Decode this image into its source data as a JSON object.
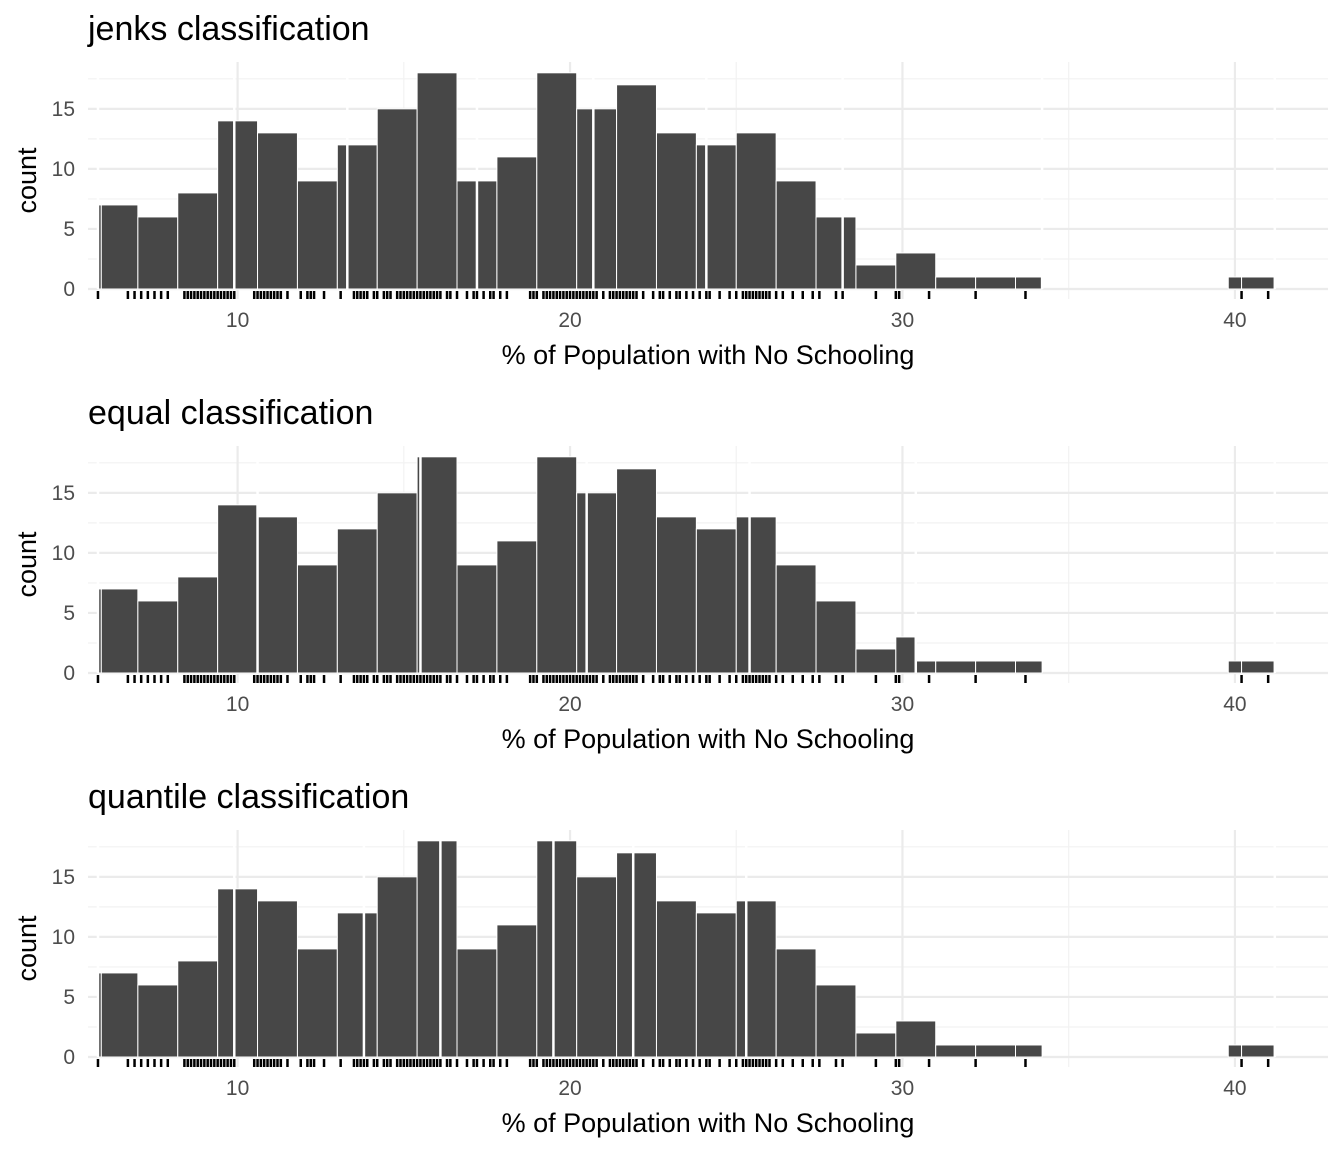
{
  "chart_data": [
    {
      "type": "bar",
      "title": "jenks classification",
      "xlabel": "% of Population with No Schooling",
      "ylabel": "count",
      "xlim": [
        5.5,
        42.8
      ],
      "ylim": [
        0,
        18.9
      ],
      "x_ticks": [
        10,
        20,
        30,
        40
      ],
      "y_ticks": [
        0,
        5,
        10,
        15
      ],
      "grid": true,
      "legend": "none",
      "breaks": [
        5.8,
        9.9,
        13.3,
        17.2,
        20.7,
        24.1,
        28.2,
        34.2,
        41.2
      ],
      "bins": [
        {
          "x0": 5.8,
          "x1": 5.9,
          "count": 7
        },
        {
          "x0": 5.9,
          "x1": 7.0,
          "count": 7
        },
        {
          "x0": 7.0,
          "x1": 8.2,
          "count": 6
        },
        {
          "x0": 8.2,
          "x1": 9.4,
          "count": 8
        },
        {
          "x0": 9.4,
          "x1": 9.9,
          "count": 14
        },
        {
          "x0": 9.9,
          "x1": 10.6,
          "count": 14
        },
        {
          "x0": 10.6,
          "x1": 11.8,
          "count": 13
        },
        {
          "x0": 11.8,
          "x1": 13.0,
          "count": 9
        },
        {
          "x0": 13.0,
          "x1": 13.3,
          "count": 12
        },
        {
          "x0": 13.3,
          "x1": 14.2,
          "count": 12
        },
        {
          "x0": 14.2,
          "x1": 15.4,
          "count": 15
        },
        {
          "x0": 15.4,
          "x1": 16.6,
          "count": 18
        },
        {
          "x0": 16.6,
          "x1": 17.2,
          "count": 9
        },
        {
          "x0": 17.2,
          "x1": 17.8,
          "count": 9
        },
        {
          "x0": 17.8,
          "x1": 19.0,
          "count": 11
        },
        {
          "x0": 19.0,
          "x1": 20.2,
          "count": 18
        },
        {
          "x0": 20.2,
          "x1": 20.7,
          "count": 15
        },
        {
          "x0": 20.7,
          "x1": 21.4,
          "count": 15
        },
        {
          "x0": 21.4,
          "x1": 22.6,
          "count": 17
        },
        {
          "x0": 22.6,
          "x1": 23.8,
          "count": 13
        },
        {
          "x0": 23.8,
          "x1": 24.1,
          "count": 12
        },
        {
          "x0": 24.1,
          "x1": 25.0,
          "count": 12
        },
        {
          "x0": 25.0,
          "x1": 26.2,
          "count": 13
        },
        {
          "x0": 26.2,
          "x1": 27.4,
          "count": 9
        },
        {
          "x0": 27.4,
          "x1": 28.2,
          "count": 6
        },
        {
          "x0": 28.2,
          "x1": 28.6,
          "count": 6
        },
        {
          "x0": 28.6,
          "x1": 29.8,
          "count": 2
        },
        {
          "x0": 29.8,
          "x1": 31.0,
          "count": 3
        },
        {
          "x0": 31.0,
          "x1": 32.2,
          "count": 1
        },
        {
          "x0": 32.2,
          "x1": 33.4,
          "count": 1
        },
        {
          "x0": 33.4,
          "x1": 34.2,
          "count": 1
        },
        {
          "x0": 39.8,
          "x1": 40.2,
          "count": 1
        },
        {
          "x0": 40.2,
          "x1": 41.2,
          "count": 1
        }
      ]
    },
    {
      "type": "bar",
      "title": "equal classification",
      "xlabel": "% of Population with No Schooling",
      "ylabel": "count",
      "xlim": [
        5.5,
        42.8
      ],
      "ylim": [
        0,
        18.9
      ],
      "x_ticks": [
        10,
        20,
        30,
        40
      ],
      "y_ticks": [
        0,
        5,
        10,
        15
      ],
      "grid": true,
      "legend": "none",
      "breaks": [
        5.8,
        10.6,
        15.5,
        20.5,
        25.4,
        30.4,
        41.2
      ],
      "bins": [
        {
          "x0": 5.8,
          "x1": 5.9,
          "count": 7
        },
        {
          "x0": 5.9,
          "x1": 7.0,
          "count": 7
        },
        {
          "x0": 7.0,
          "x1": 8.2,
          "count": 6
        },
        {
          "x0": 8.2,
          "x1": 9.4,
          "count": 8
        },
        {
          "x0": 9.4,
          "x1": 10.6,
          "count": 14
        },
        {
          "x0": 10.6,
          "x1": 10.6,
          "count": 13
        },
        {
          "x0": 10.6,
          "x1": 11.8,
          "count": 13
        },
        {
          "x0": 11.8,
          "x1": 13.0,
          "count": 9
        },
        {
          "x0": 13.0,
          "x1": 14.2,
          "count": 12
        },
        {
          "x0": 14.2,
          "x1": 15.4,
          "count": 15
        },
        {
          "x0": 15.4,
          "x1": 15.5,
          "count": 18
        },
        {
          "x0": 15.5,
          "x1": 16.6,
          "count": 18
        },
        {
          "x0": 16.6,
          "x1": 17.8,
          "count": 9
        },
        {
          "x0": 17.8,
          "x1": 19.0,
          "count": 11
        },
        {
          "x0": 19.0,
          "x1": 20.2,
          "count": 18
        },
        {
          "x0": 20.2,
          "x1": 20.5,
          "count": 15
        },
        {
          "x0": 20.5,
          "x1": 21.4,
          "count": 15
        },
        {
          "x0": 21.4,
          "x1": 22.6,
          "count": 17
        },
        {
          "x0": 22.6,
          "x1": 23.8,
          "count": 13
        },
        {
          "x0": 23.8,
          "x1": 25.0,
          "count": 12
        },
        {
          "x0": 25.0,
          "x1": 25.4,
          "count": 13
        },
        {
          "x0": 25.4,
          "x1": 26.2,
          "count": 13
        },
        {
          "x0": 26.2,
          "x1": 27.4,
          "count": 9
        },
        {
          "x0": 27.4,
          "x1": 28.6,
          "count": 6
        },
        {
          "x0": 28.6,
          "x1": 29.8,
          "count": 2
        },
        {
          "x0": 29.8,
          "x1": 30.4,
          "count": 3
        },
        {
          "x0": 30.4,
          "x1": 31.0,
          "count": 1
        },
        {
          "x0": 31.0,
          "x1": 32.2,
          "count": 1
        },
        {
          "x0": 32.2,
          "x1": 33.4,
          "count": 1
        },
        {
          "x0": 33.4,
          "x1": 34.2,
          "count": 1
        },
        {
          "x0": 39.8,
          "x1": 40.2,
          "count": 1
        },
        {
          "x0": 40.2,
          "x1": 41.2,
          "count": 1
        }
      ]
    },
    {
      "type": "bar",
      "title": "quantile classification",
      "xlabel": "% of Population with No Schooling",
      "ylabel": "count",
      "xlim": [
        5.5,
        42.8
      ],
      "ylim": [
        0,
        18.9
      ],
      "x_ticks": [
        10,
        20,
        30,
        40
      ],
      "y_ticks": [
        0,
        5,
        10,
        15
      ],
      "grid": true,
      "legend": "none",
      "breaks": [
        5.8,
        9.9,
        13.8,
        16.1,
        19.5,
        21.9,
        25.3,
        41.2
      ],
      "bins": [
        {
          "x0": 5.8,
          "x1": 5.9,
          "count": 7
        },
        {
          "x0": 5.9,
          "x1": 7.0,
          "count": 7
        },
        {
          "x0": 7.0,
          "x1": 8.2,
          "count": 6
        },
        {
          "x0": 8.2,
          "x1": 9.4,
          "count": 8
        },
        {
          "x0": 9.4,
          "x1": 9.9,
          "count": 14
        },
        {
          "x0": 9.9,
          "x1": 10.6,
          "count": 14
        },
        {
          "x0": 10.6,
          "x1": 11.8,
          "count": 13
        },
        {
          "x0": 11.8,
          "x1": 13.0,
          "count": 9
        },
        {
          "x0": 13.0,
          "x1": 13.8,
          "count": 12
        },
        {
          "x0": 13.8,
          "x1": 14.2,
          "count": 12
        },
        {
          "x0": 14.2,
          "x1": 15.4,
          "count": 15
        },
        {
          "x0": 15.4,
          "x1": 16.1,
          "count": 18
        },
        {
          "x0": 16.1,
          "x1": 16.6,
          "count": 18
        },
        {
          "x0": 16.6,
          "x1": 17.8,
          "count": 9
        },
        {
          "x0": 17.8,
          "x1": 19.0,
          "count": 11
        },
        {
          "x0": 19.0,
          "x1": 19.5,
          "count": 18
        },
        {
          "x0": 19.5,
          "x1": 20.2,
          "count": 18
        },
        {
          "x0": 20.2,
          "x1": 21.4,
          "count": 15
        },
        {
          "x0": 21.4,
          "x1": 21.9,
          "count": 17
        },
        {
          "x0": 21.9,
          "x1": 22.6,
          "count": 17
        },
        {
          "x0": 22.6,
          "x1": 23.8,
          "count": 13
        },
        {
          "x0": 23.8,
          "x1": 25.0,
          "count": 12
        },
        {
          "x0": 25.0,
          "x1": 25.3,
          "count": 13
        },
        {
          "x0": 25.3,
          "x1": 26.2,
          "count": 13
        },
        {
          "x0": 26.2,
          "x1": 27.4,
          "count": 9
        },
        {
          "x0": 27.4,
          "x1": 28.6,
          "count": 6
        },
        {
          "x0": 28.6,
          "x1": 29.8,
          "count": 2
        },
        {
          "x0": 29.8,
          "x1": 31.0,
          "count": 3
        },
        {
          "x0": 31.0,
          "x1": 32.2,
          "count": 1
        },
        {
          "x0": 32.2,
          "x1": 33.4,
          "count": 1
        },
        {
          "x0": 33.4,
          "x1": 34.2,
          "count": 1
        },
        {
          "x0": 39.8,
          "x1": 40.2,
          "count": 1
        },
        {
          "x0": 40.2,
          "x1": 41.2,
          "count": 1
        }
      ]
    }
  ],
  "rug_values": [
    5.8,
    6.7,
    6.9,
    7.1,
    7.3,
    7.5,
    7.7,
    7.9,
    8.4,
    8.5,
    8.6,
    8.7,
    8.8,
    8.9,
    9.0,
    9.1,
    9.2,
    9.3,
    9.4,
    9.5,
    9.6,
    9.7,
    9.8,
    9.9,
    10.5,
    10.6,
    10.7,
    10.8,
    10.9,
    11.0,
    11.1,
    11.2,
    11.3,
    11.5,
    11.9,
    12.1,
    12.2,
    12.3,
    12.6,
    13.1,
    13.5,
    13.6,
    13.7,
    13.8,
    13.9,
    14.1,
    14.2,
    14.4,
    14.5,
    14.6,
    14.8,
    14.9,
    15.0,
    15.1,
    15.2,
    15.3,
    15.4,
    15.5,
    15.6,
    15.7,
    15.8,
    15.9,
    16.0,
    16.1,
    16.3,
    16.4,
    16.6,
    16.9,
    17.1,
    17.2,
    17.4,
    17.6,
    17.7,
    17.9,
    18.1,
    18.8,
    18.9,
    19.0,
    19.2,
    19.3,
    19.4,
    19.5,
    19.6,
    19.7,
    19.8,
    19.9,
    20.0,
    20.1,
    20.2,
    20.3,
    20.4,
    20.5,
    20.6,
    20.7,
    20.8,
    21.0,
    21.2,
    21.3,
    21.4,
    21.5,
    21.6,
    21.7,
    21.8,
    21.9,
    22.0,
    22.2,
    22.5,
    22.7,
    22.8,
    23.0,
    23.2,
    23.3,
    23.5,
    23.7,
    23.9,
    24.1,
    24.2,
    24.5,
    24.8,
    25.0,
    25.2,
    25.3,
    25.4,
    25.5,
    25.6,
    25.7,
    25.8,
    25.9,
    26.0,
    26.2,
    26.4,
    26.7,
    27.0,
    27.3,
    27.5,
    28.0,
    28.2,
    29.2,
    29.8,
    29.9,
    30.8,
    32.2,
    33.7,
    40.2,
    41.0
  ]
}
